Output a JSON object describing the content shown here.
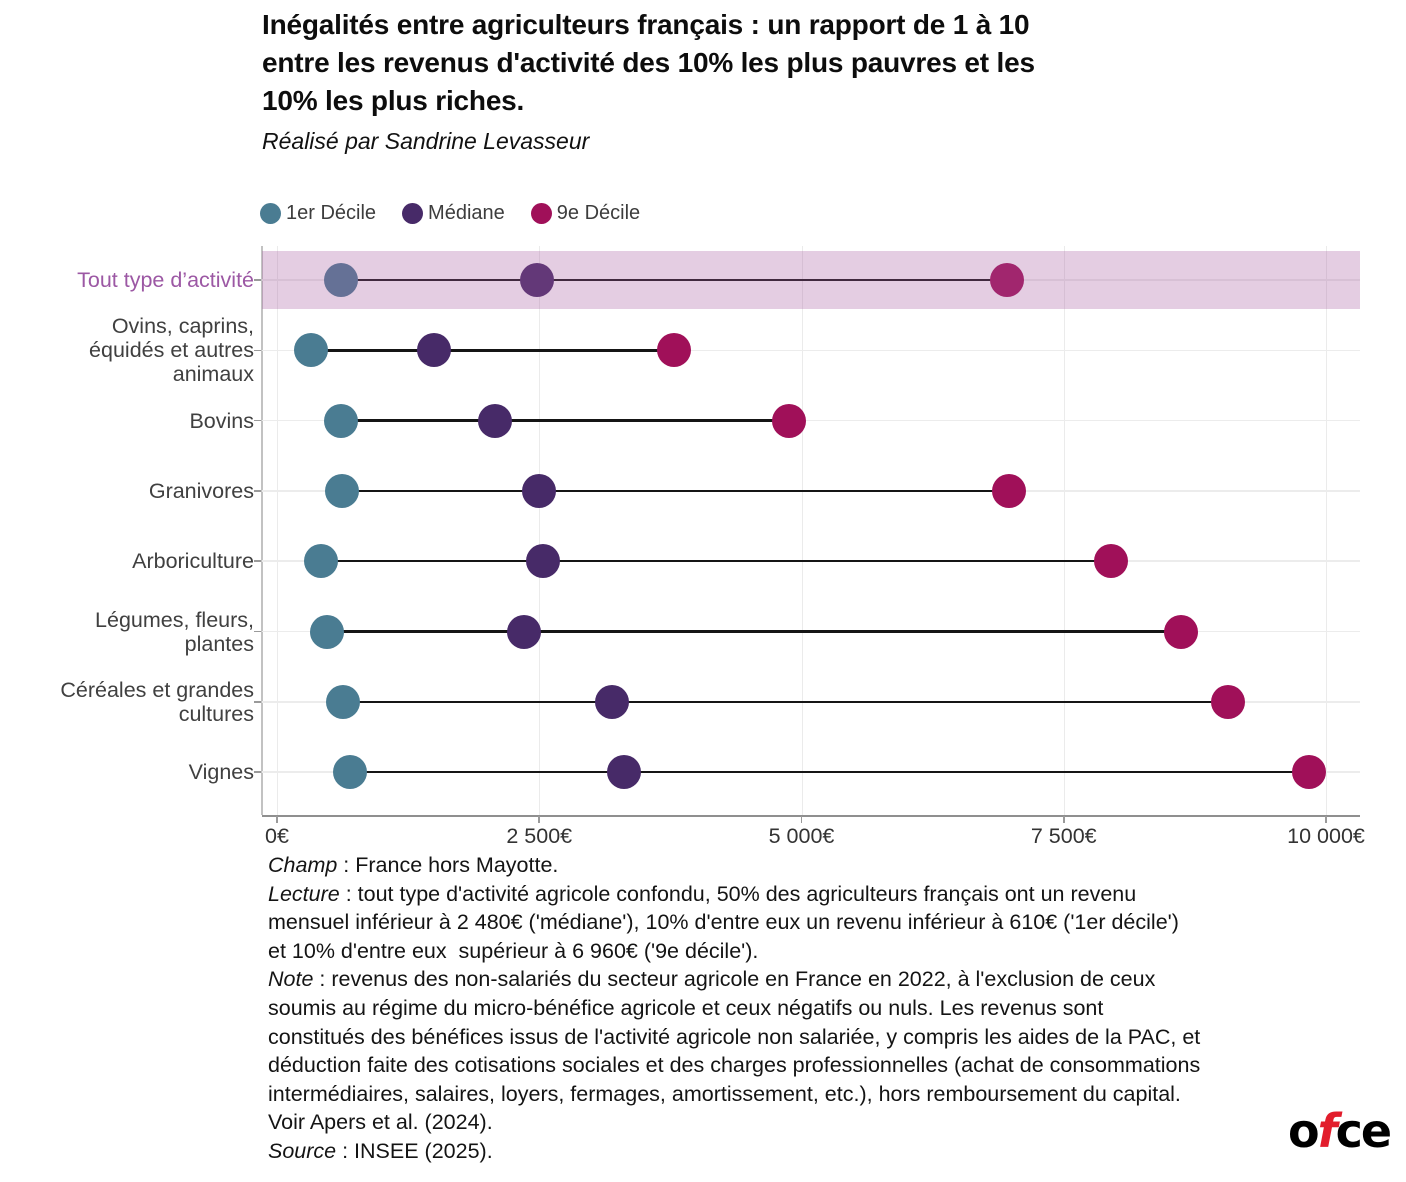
{
  "header": {
    "title_lines": [
      "Inégalités entre agriculteurs français : un rapport de 1 à 10",
      "entre les revenus d'activité des 10% les plus pauvres et les",
      "10% les plus riches."
    ],
    "subtitle": "Réalisé par Sandrine Levasseur"
  },
  "chart_data": {
    "type": "scatter",
    "subtype": "dumbbell-dot-plot",
    "unit": "€ / mois",
    "categories": [
      "Tout type d’activité",
      "Ovins, caprins, équidés et autres animaux",
      "Bovins",
      "Granivores",
      "Arboriculture",
      "Légumes, fleurs, plantes",
      "Céréales et grandes cultures",
      "Vignes"
    ],
    "category_label_lines": [
      [
        "Tout type d’activité"
      ],
      [
        "Ovins, caprins,",
        "équidés et autres",
        "animaux"
      ],
      [
        "Bovins"
      ],
      [
        "Granivores"
      ],
      [
        "Arboriculture"
      ],
      [
        "Légumes, fleurs,",
        "plantes"
      ],
      [
        "Céréales et grandes",
        "cultures"
      ],
      [
        "Vignes"
      ]
    ],
    "series": [
      {
        "name": "1er Décile",
        "color": "#4a7c92",
        "values": [
          610,
          320,
          610,
          620,
          420,
          480,
          630,
          700
        ]
      },
      {
        "name": "Médiane",
        "color": "#472a68",
        "values": [
          2480,
          1500,
          2080,
          2500,
          2540,
          2350,
          3190,
          3310
        ]
      },
      {
        "name": "9e Décile",
        "color": "#a01059",
        "values": [
          6960,
          3780,
          4880,
          6980,
          7950,
          8620,
          9070,
          9840
        ]
      }
    ],
    "x_ticks": [
      {
        "value": 0,
        "label": "0€"
      },
      {
        "value": 2500,
        "label": "2 500€"
      },
      {
        "value": 5000,
        "label": "5 000€"
      },
      {
        "value": 7500,
        "label": "7 500€"
      },
      {
        "value": 10000,
        "label": "10 000€"
      }
    ],
    "xlim": [
      0,
      10320
    ],
    "grid": true,
    "legend_position": "top",
    "highlight_category": "Tout type d’activité",
    "highlight_overlay_color": "rgba(165,90,160,0.30)",
    "highlight_label_color": "#9c58a4",
    "connector_color": "#151515"
  },
  "footer": {
    "lines": [
      {
        "italic": "Champ",
        "text": " : France hors Mayotte."
      },
      {
        "italic": "Lecture",
        "text": " : tout type d'activité agricole confondu, 50% des agriculteurs français ont un revenu"
      },
      {
        "italic": "",
        "text": "mensuel inférieur à 2 480€ ('médiane'), 10% d'entre eux un revenu inférieur à 610€ ('1er décile')"
      },
      {
        "italic": "",
        "text": "et 10% d'entre eux  supérieur à 6 960€ ('9e décile')."
      },
      {
        "italic": "Note",
        "text": " : revenus des non-salariés du secteur agricole en France en 2022, à l'exclusion de ceux"
      },
      {
        "italic": "",
        "text": "soumis au régime du micro-bénéfice agricole et ceux négatifs ou nuls. Les revenus sont"
      },
      {
        "italic": "",
        "text": "constitués des bénéfices issus de l'activité agricole non salariée, y compris les aides de la PAC, et"
      },
      {
        "italic": "",
        "text": "déduction faite des cotisations sociales et des charges professionnelles (achat de consommations"
      },
      {
        "italic": "",
        "text": "intermédiaires, salaires, loyers, fermages, amortissement, etc.), hors remboursement du capital."
      },
      {
        "italic": "",
        "text": "Voir Apers et al. (2024)."
      },
      {
        "italic": "Source",
        "text": " : INSEE (2025)."
      }
    ]
  },
  "logo": {
    "part1": "o",
    "part2": "f",
    "part3": "ce",
    "accent_color": "#e21d2c"
  }
}
